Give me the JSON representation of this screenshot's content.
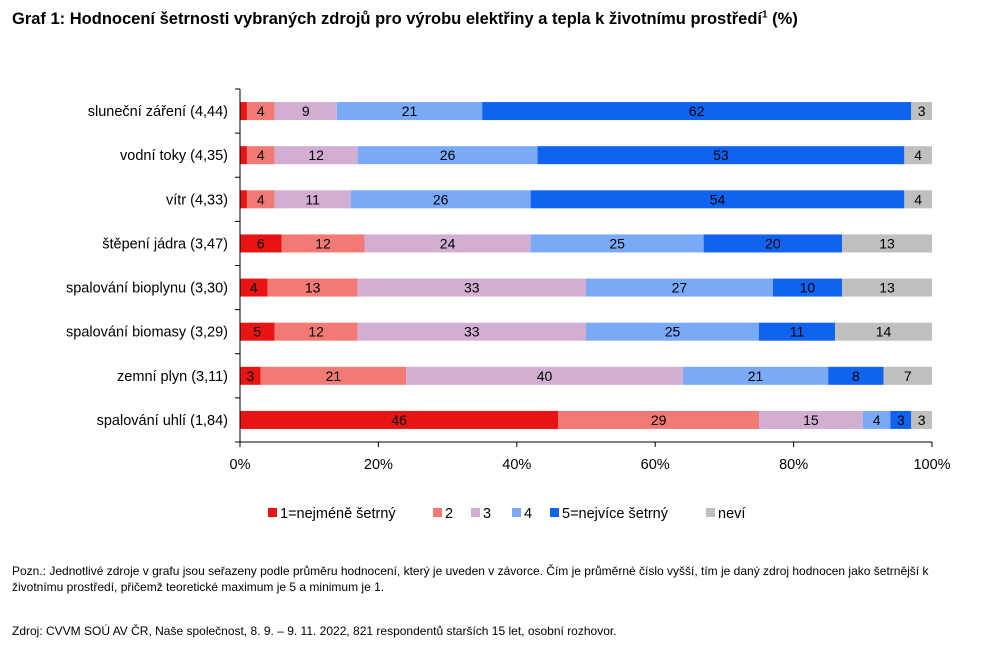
{
  "title": {
    "text": "Graf 1: Hodnocení šetrnosti vybraných zdrojů pro výrobu elektřiny a tepla k životnímu prostředí",
    "superscript": "1",
    "suffix": " (%)"
  },
  "chart_data": {
    "type": "bar",
    "orientation": "horizontal",
    "stacked": true,
    "categories": [
      "sluneční záření (4,44)",
      "vodní toky (4,35)",
      "vítr (4,33)",
      "štěpení jádra (3,47)",
      "spalování bioplynu (3,30)",
      "spalování biomasy (3,29)",
      "zemní plyn (3,11)",
      "spalování uhlí (1,84)"
    ],
    "series": [
      {
        "name": "1=nejméně šetrný",
        "color": "#e81313",
        "values": [
          1,
          1,
          1,
          6,
          4,
          5,
          3,
          46
        ]
      },
      {
        "name": "2",
        "color": "#f27a75",
        "values": [
          4,
          4,
          4,
          12,
          13,
          12,
          21,
          29
        ]
      },
      {
        "name": "3",
        "color": "#d2aed2",
        "values": [
          9,
          12,
          11,
          24,
          33,
          33,
          40,
          15
        ]
      },
      {
        "name": "4",
        "color": "#7aaaf5",
        "values": [
          21,
          26,
          26,
          25,
          27,
          25,
          21,
          4
        ]
      },
      {
        "name": "5=nejvíce šetrný",
        "color": "#0f63ee",
        "values": [
          62,
          53,
          54,
          20,
          10,
          11,
          8,
          3
        ]
      },
      {
        "name": "neví",
        "color": "#bfbfbf",
        "values": [
          3,
          4,
          4,
          13,
          13,
          14,
          7,
          3
        ]
      }
    ],
    "data_labels": [
      [
        "",
        "4",
        "9",
        "21",
        "62",
        "3"
      ],
      [
        "",
        "4",
        "12",
        "26",
        "53",
        "4"
      ],
      [
        "",
        "4",
        "11",
        "26",
        "54",
        "4"
      ],
      [
        "6",
        "12",
        "24",
        "25",
        "20",
        "13"
      ],
      [
        "4",
        "13",
        "33",
        "27",
        "10",
        "13"
      ],
      [
        "5",
        "12",
        "33",
        "25",
        "11",
        "14"
      ],
      [
        "3",
        "21",
        "40",
        "21",
        "8",
        "7"
      ],
      [
        "46",
        "29",
        "15",
        "4",
        "3",
        "3"
      ]
    ],
    "xlim": [
      0,
      100
    ],
    "xticks": [
      0,
      20,
      40,
      60,
      80,
      100
    ],
    "xtick_labels": [
      "0%",
      "20%",
      "40%",
      "60%",
      "80%",
      "100%"
    ],
    "grid": false,
    "legend_position": "bottom"
  },
  "note": "Pozn.: Jednotlivé zdroje v grafu jsou seřazeny podle průměru hodnocení, který je uveden v závorce. Čím je průměrné číslo vyšší, tím je daný zdroj hodnocen jako šetrnější k životnímu prostředí, přičemž teoretické maximum je 5 a minimum je 1.",
  "source": "Zdroj: CVVM SOÚ AV ČR, Naše společnost, 8. 9. – 9. 11. 2022, 821 respondentů starších 15 let, osobní rozhovor."
}
